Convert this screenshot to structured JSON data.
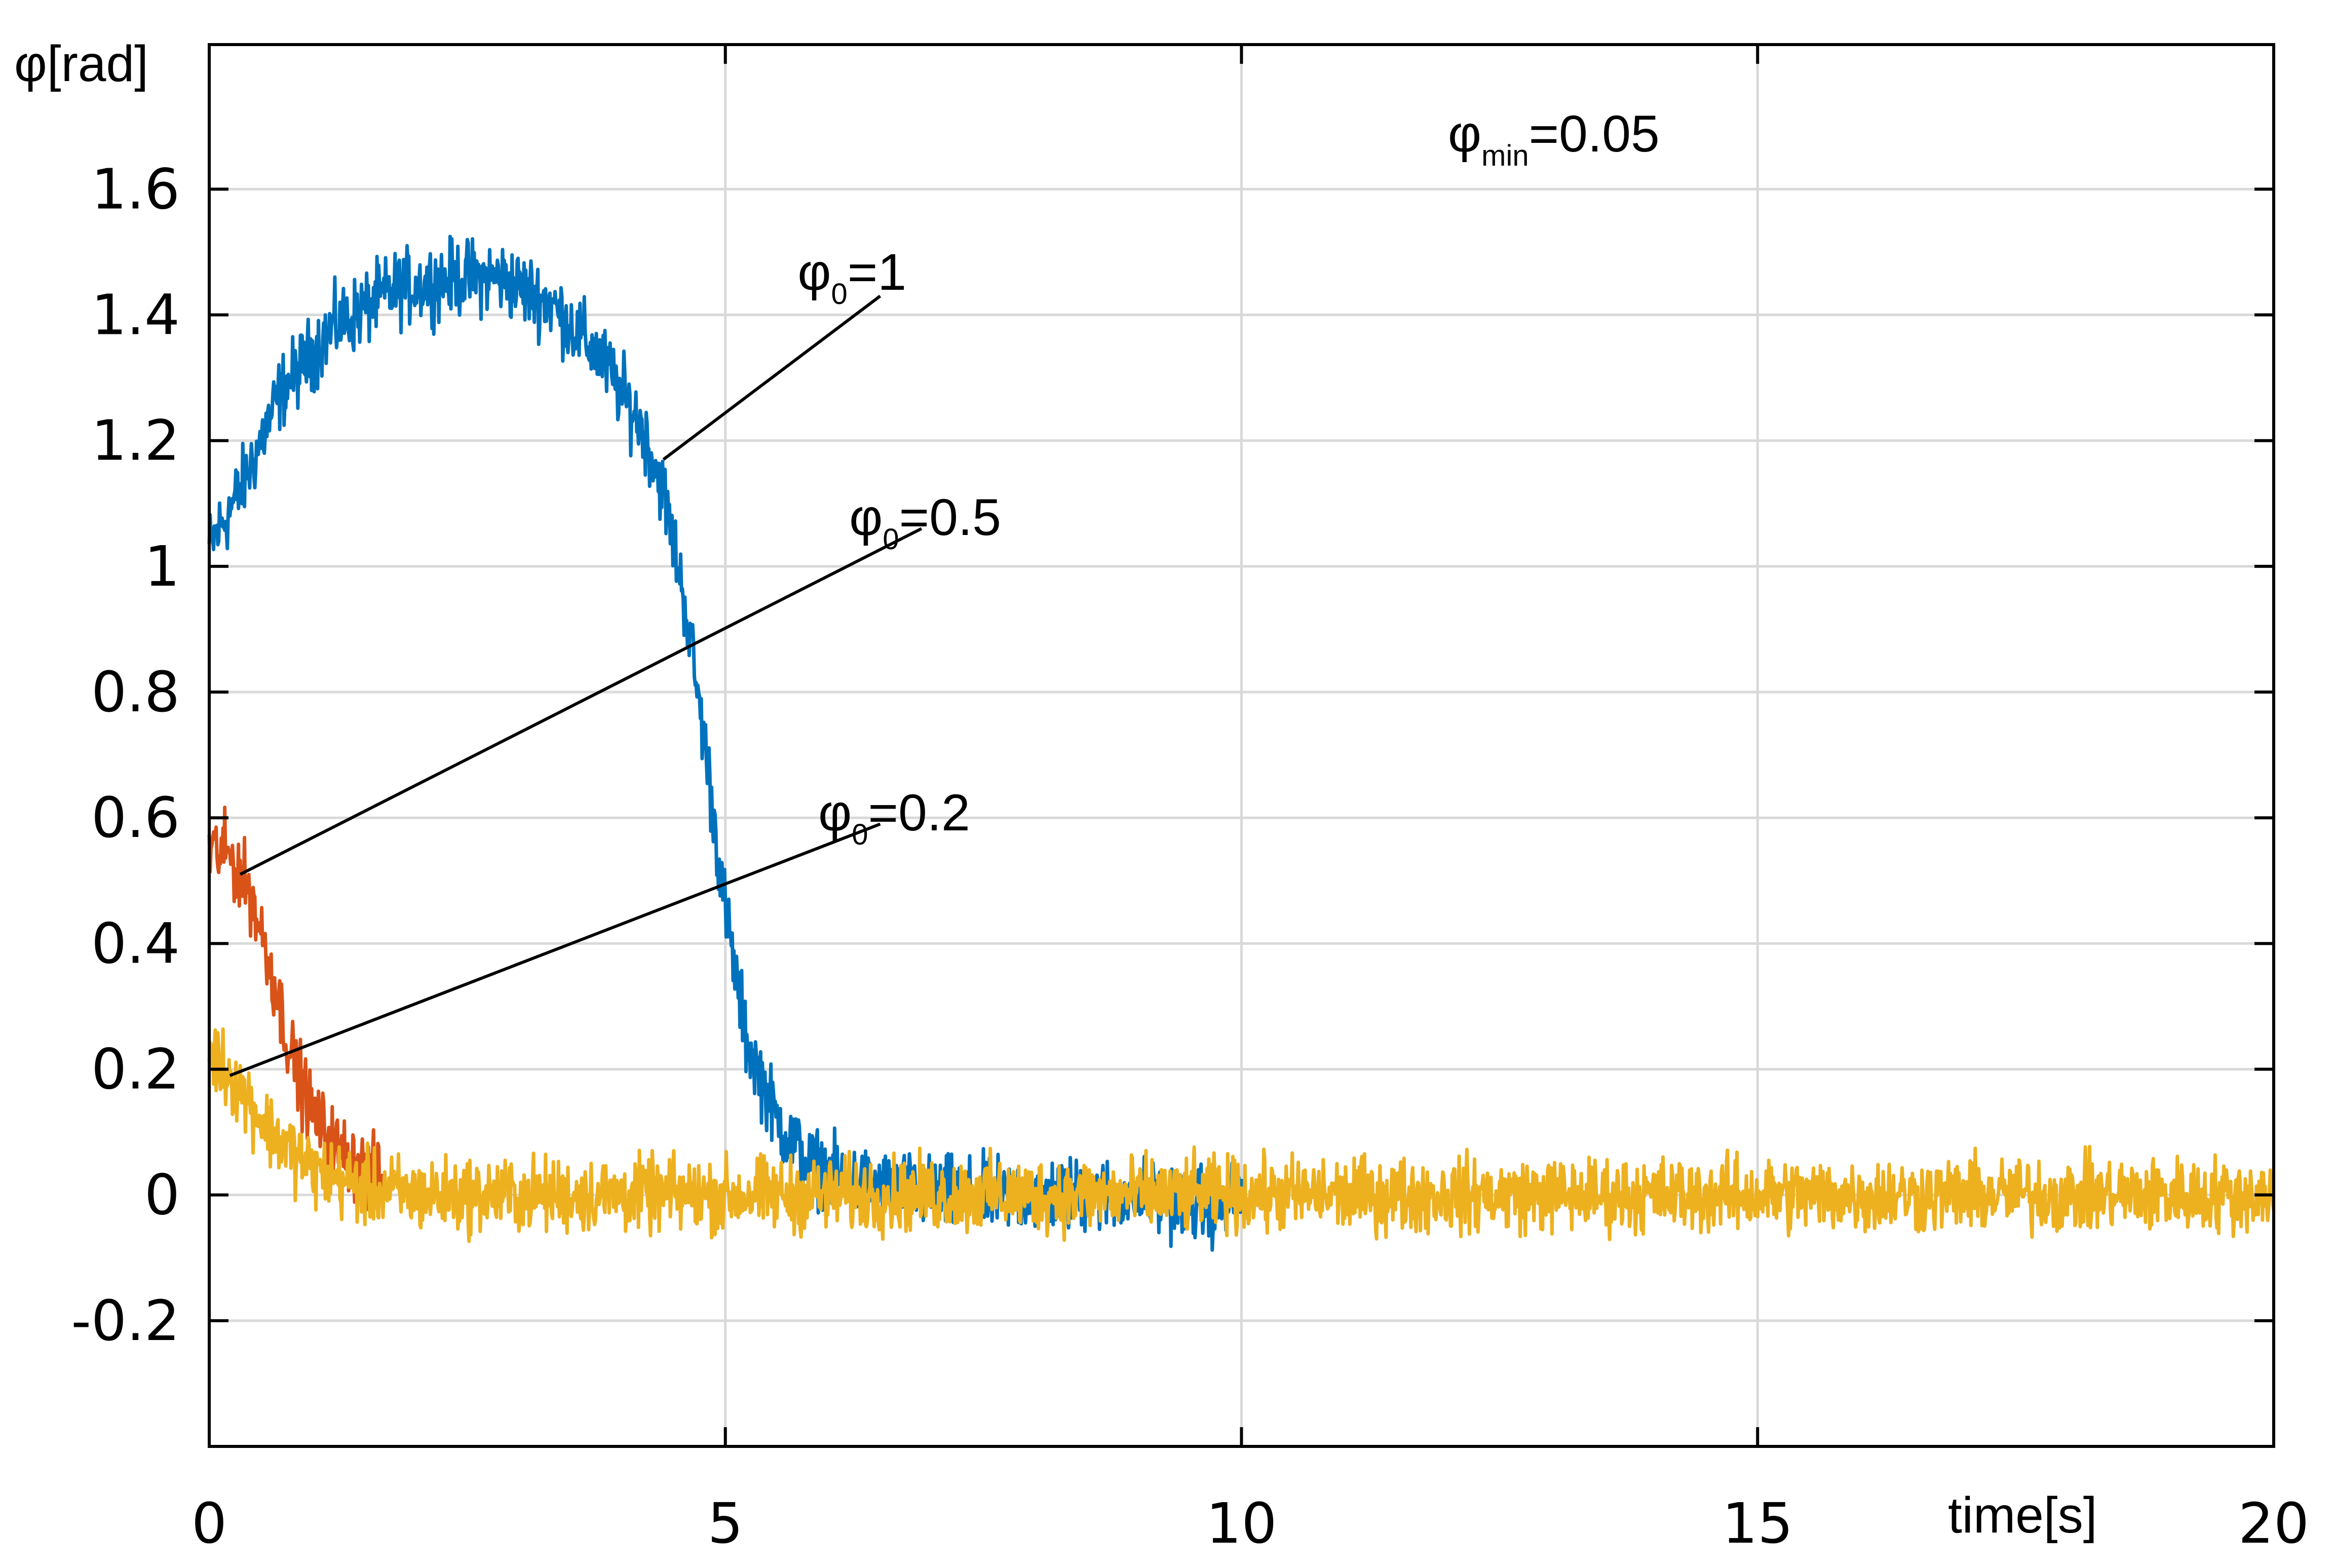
{
  "chart_data": {
    "type": "line",
    "xlabel": "time[s]",
    "ylabel": "φ[rad]",
    "xlim": [
      0,
      20
    ],
    "ylim": [
      -0.4,
      1.83
    ],
    "x_ticks": [
      0,
      5,
      10,
      15,
      20
    ],
    "x_tick_labels": [
      "0",
      "5",
      "10",
      "15",
      "20"
    ],
    "y_ticks": [
      -0.2,
      0,
      0.2,
      0.4,
      0.6,
      0.8,
      1,
      1.2,
      1.4,
      1.6
    ],
    "y_tick_labels": [
      "-0.2",
      "0",
      "0.2",
      "0.4",
      "0.6",
      "0.8",
      "1",
      "1.2",
      "1.4",
      "1.6"
    ],
    "grid": true,
    "noise_amplitude": 0.045,
    "series": [
      {
        "color": "#0072bd",
        "x": [
          0,
          0.3,
          0.7,
          1.2,
          1.8,
          2.4,
          2.8,
          3.3,
          3.8,
          4.2,
          4.4,
          4.6,
          4.8,
          5.0,
          5.2,
          5.5,
          5.8,
          6.2,
          7.0,
          8.0,
          9.0,
          9.8,
          10.0
        ],
        "y": [
          1.03,
          1.12,
          1.28,
          1.38,
          1.44,
          1.46,
          1.46,
          1.42,
          1.33,
          1.22,
          1.12,
          0.95,
          0.72,
          0.45,
          0.25,
          0.12,
          0.05,
          0.02,
          0.0,
          0.0,
          0.0,
          -0.02,
          0.0
        ]
      },
      {
        "color": "#d95319",
        "x": [
          0,
          0.2,
          0.4,
          0.6,
          0.8,
          1.0,
          1.2,
          1.5,
          1.7
        ],
        "y": [
          0.55,
          0.54,
          0.48,
          0.36,
          0.22,
          0.13,
          0.08,
          0.04,
          0.02
        ]
      },
      {
        "color": "#edb120",
        "x": [
          0,
          0.3,
          0.6,
          1.0,
          1.5,
          2.0,
          3.0,
          5.0,
          10.0,
          15.0,
          20.0
        ],
        "y": [
          0.23,
          0.17,
          0.1,
          0.04,
          0.01,
          0.0,
          0.0,
          0.0,
          0.0,
          0.0,
          0.0
        ]
      }
    ],
    "annotations": [
      {
        "base": "φ",
        "sub": "0",
        "suffix": "=1",
        "text_pos": [
          5.7,
          1.44
        ],
        "arrow_from": [
          6.5,
          1.43
        ],
        "arrow_to": [
          4.4,
          1.17
        ]
      },
      {
        "base": "φ",
        "sub": "0",
        "suffix": "=0.5",
        "text_pos": [
          6.2,
          1.05
        ],
        "arrow_from": [
          6.9,
          1.06
        ],
        "arrow_to": [
          0.3,
          0.51
        ]
      },
      {
        "base": "φ",
        "sub": "0",
        "suffix": "=0.2",
        "text_pos": [
          5.9,
          0.58
        ],
        "arrow_from": [
          6.5,
          0.59
        ],
        "arrow_to": [
          0.2,
          0.19
        ]
      }
    ],
    "parameter_label": {
      "base": "φ",
      "sub": "min",
      "suffix": "=0.05",
      "text_pos": [
        12.0,
        1.66
      ]
    }
  }
}
